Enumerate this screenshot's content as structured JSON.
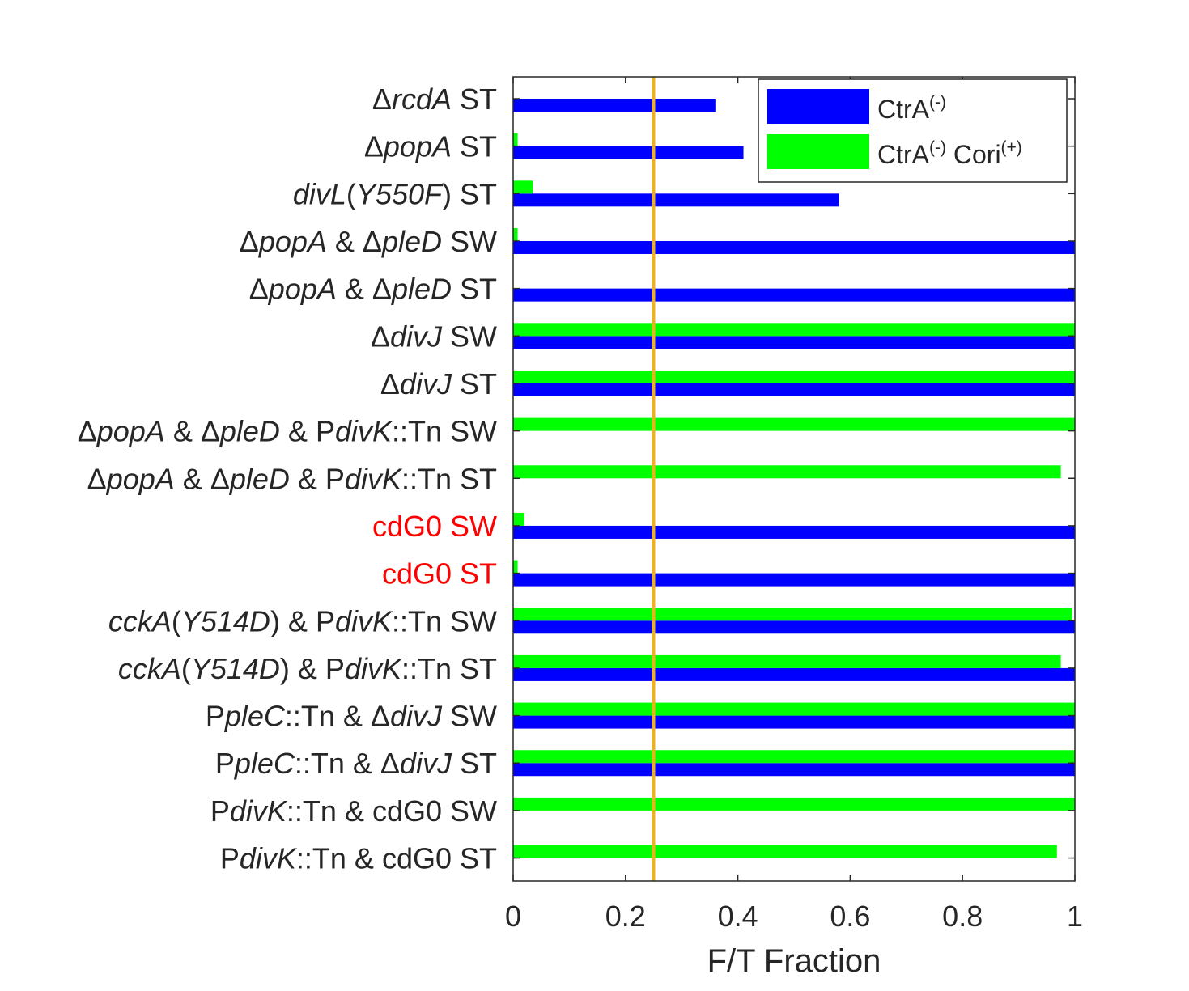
{
  "chart_data": {
    "type": "bar",
    "orientation": "horizontal",
    "title": "",
    "xlabel": "F/T Fraction",
    "ylabel": "",
    "xlim": [
      0,
      1
    ],
    "xticks": [
      0,
      0.2,
      0.4,
      0.6,
      0.8,
      1
    ],
    "xtick_labels": [
      "0",
      "0.2",
      "0.4",
      "0.6",
      "0.8",
      "1"
    ],
    "grid": false,
    "legend_position": "top-right",
    "reference_line": {
      "x": 0.25,
      "color": "#EDB120"
    },
    "categories": [
      {
        "label": "ΔrcdA ST",
        "color": "#262626",
        "segments": [
          {
            "text": "Δ",
            "italic": false
          },
          {
            "text": "rcdA",
            "italic": true
          },
          {
            "text": " ST",
            "italic": false
          }
        ]
      },
      {
        "label": "ΔpopA ST",
        "color": "#262626",
        "segments": [
          {
            "text": "Δ",
            "italic": false
          },
          {
            "text": "popA",
            "italic": true
          },
          {
            "text": " ST",
            "italic": false
          }
        ]
      },
      {
        "label": "divL(Y550F) ST",
        "color": "#262626",
        "segments": [
          {
            "text": "divL",
            "italic": true
          },
          {
            "text": "(",
            "italic": false
          },
          {
            "text": "Y550F",
            "italic": true
          },
          {
            "text": ") ST",
            "italic": false
          }
        ]
      },
      {
        "label": "ΔpopA & ΔpleD SW",
        "color": "#262626",
        "segments": [
          {
            "text": "Δ",
            "italic": false
          },
          {
            "text": "popA",
            "italic": true
          },
          {
            "text": " & Δ",
            "italic": false
          },
          {
            "text": "pleD",
            "italic": true
          },
          {
            "text": " SW",
            "italic": false
          }
        ]
      },
      {
        "label": "ΔpopA & ΔpleD ST",
        "color": "#262626",
        "segments": [
          {
            "text": "Δ",
            "italic": false
          },
          {
            "text": "popA",
            "italic": true
          },
          {
            "text": " & Δ",
            "italic": false
          },
          {
            "text": "pleD",
            "italic": true
          },
          {
            "text": " ST",
            "italic": false
          }
        ]
      },
      {
        "label": "ΔdivJ SW",
        "color": "#262626",
        "segments": [
          {
            "text": "Δ",
            "italic": false
          },
          {
            "text": "divJ",
            "italic": true
          },
          {
            "text": " SW",
            "italic": false
          }
        ]
      },
      {
        "label": "ΔdivJ ST",
        "color": "#262626",
        "segments": [
          {
            "text": "Δ",
            "italic": false
          },
          {
            "text": "divJ",
            "italic": true
          },
          {
            "text": " ST",
            "italic": false
          }
        ]
      },
      {
        "label": "ΔpopA & ΔpleD & PdivK::Tn SW",
        "color": "#262626",
        "segments": [
          {
            "text": "Δ",
            "italic": false
          },
          {
            "text": "popA",
            "italic": true
          },
          {
            "text": " & Δ",
            "italic": false
          },
          {
            "text": "pleD",
            "italic": true
          },
          {
            "text": " & P",
            "italic": false
          },
          {
            "text": "divK",
            "italic": true
          },
          {
            "text": "::Tn SW",
            "italic": false
          }
        ]
      },
      {
        "label": "ΔpopA & ΔpleD & PdivK::Tn ST",
        "color": "#262626",
        "segments": [
          {
            "text": "Δ",
            "italic": false
          },
          {
            "text": "popA",
            "italic": true
          },
          {
            "text": " & Δ",
            "italic": false
          },
          {
            "text": "pleD",
            "italic": true
          },
          {
            "text": " & P",
            "italic": false
          },
          {
            "text": "divK",
            "italic": true
          },
          {
            "text": "::Tn ST",
            "italic": false
          }
        ]
      },
      {
        "label": "cdG0 SW",
        "color": "#FF0000",
        "segments": [
          {
            "text": "cdG0 SW",
            "italic": false
          }
        ]
      },
      {
        "label": "cdG0 ST",
        "color": "#FF0000",
        "segments": [
          {
            "text": "cdG0 ST",
            "italic": false
          }
        ]
      },
      {
        "label": "cckA(Y514D) & PdivK::Tn SW",
        "color": "#262626",
        "segments": [
          {
            "text": "cckA",
            "italic": true
          },
          {
            "text": "(",
            "italic": false
          },
          {
            "text": "Y514D",
            "italic": true
          },
          {
            "text": ") & P",
            "italic": false
          },
          {
            "text": "divK",
            "italic": true
          },
          {
            "text": "::Tn SW",
            "italic": false
          }
        ]
      },
      {
        "label": "cckA(Y514D) & PdivK::Tn ST",
        "color": "#262626",
        "segments": [
          {
            "text": "cckA",
            "italic": true
          },
          {
            "text": "(",
            "italic": false
          },
          {
            "text": "Y514D",
            "italic": true
          },
          {
            "text": ") & P",
            "italic": false
          },
          {
            "text": "divK",
            "italic": true
          },
          {
            "text": "::Tn ST",
            "italic": false
          }
        ]
      },
      {
        "label": "PpleC::Tn & ΔdivJ SW",
        "color": "#262626",
        "segments": [
          {
            "text": "P",
            "italic": false
          },
          {
            "text": "pleC",
            "italic": true
          },
          {
            "text": "::Tn & Δ",
            "italic": false
          },
          {
            "text": "divJ",
            "italic": true
          },
          {
            "text": " SW",
            "italic": false
          }
        ]
      },
      {
        "label": "PpleC::Tn & ΔdivJ ST",
        "color": "#262626",
        "segments": [
          {
            "text": "P",
            "italic": false
          },
          {
            "text": "pleC",
            "italic": true
          },
          {
            "text": "::Tn & Δ",
            "italic": false
          },
          {
            "text": "divJ",
            "italic": true
          },
          {
            "text": " ST",
            "italic": false
          }
        ]
      },
      {
        "label": "PdivK::Tn & cdG0 SW",
        "color": "#262626",
        "segments": [
          {
            "text": "P",
            "italic": false
          },
          {
            "text": "divK",
            "italic": true
          },
          {
            "text": "::Tn & cdG0 SW",
            "italic": false
          }
        ]
      },
      {
        "label": "PdivK::Tn & cdG0 ST",
        "color": "#262626",
        "segments": [
          {
            "text": "P",
            "italic": false
          },
          {
            "text": "divK",
            "italic": true
          },
          {
            "text": "::Tn & cdG0 ST",
            "italic": false
          }
        ]
      }
    ],
    "series": [
      {
        "name": "CtrA(-)",
        "legend_segments": [
          {
            "text": "CtrA",
            "sup": false
          },
          {
            "text": "(-)",
            "sup": true
          }
        ],
        "color": "#0000FF",
        "values": [
          0.36,
          0.41,
          0.58,
          1.0,
          1.0,
          1.0,
          1.0,
          0.0,
          0.0,
          1.0,
          1.0,
          1.0,
          1.0,
          1.0,
          1.0,
          0.0,
          0.0
        ]
      },
      {
        "name": "CtrA(-) Cori(+)",
        "legend_segments": [
          {
            "text": "CtrA",
            "sup": false
          },
          {
            "text": "(-)",
            "sup": true
          },
          {
            "text": " Cori",
            "sup": false
          },
          {
            "text": "(+)",
            "sup": true
          }
        ],
        "color": "#00FF00",
        "values": [
          0.0,
          0.008,
          0.035,
          0.008,
          0.0,
          1.0,
          1.0,
          1.0,
          0.975,
          0.02,
          0.008,
          0.995,
          0.975,
          1.0,
          1.0,
          1.0,
          0.968
        ]
      }
    ]
  }
}
